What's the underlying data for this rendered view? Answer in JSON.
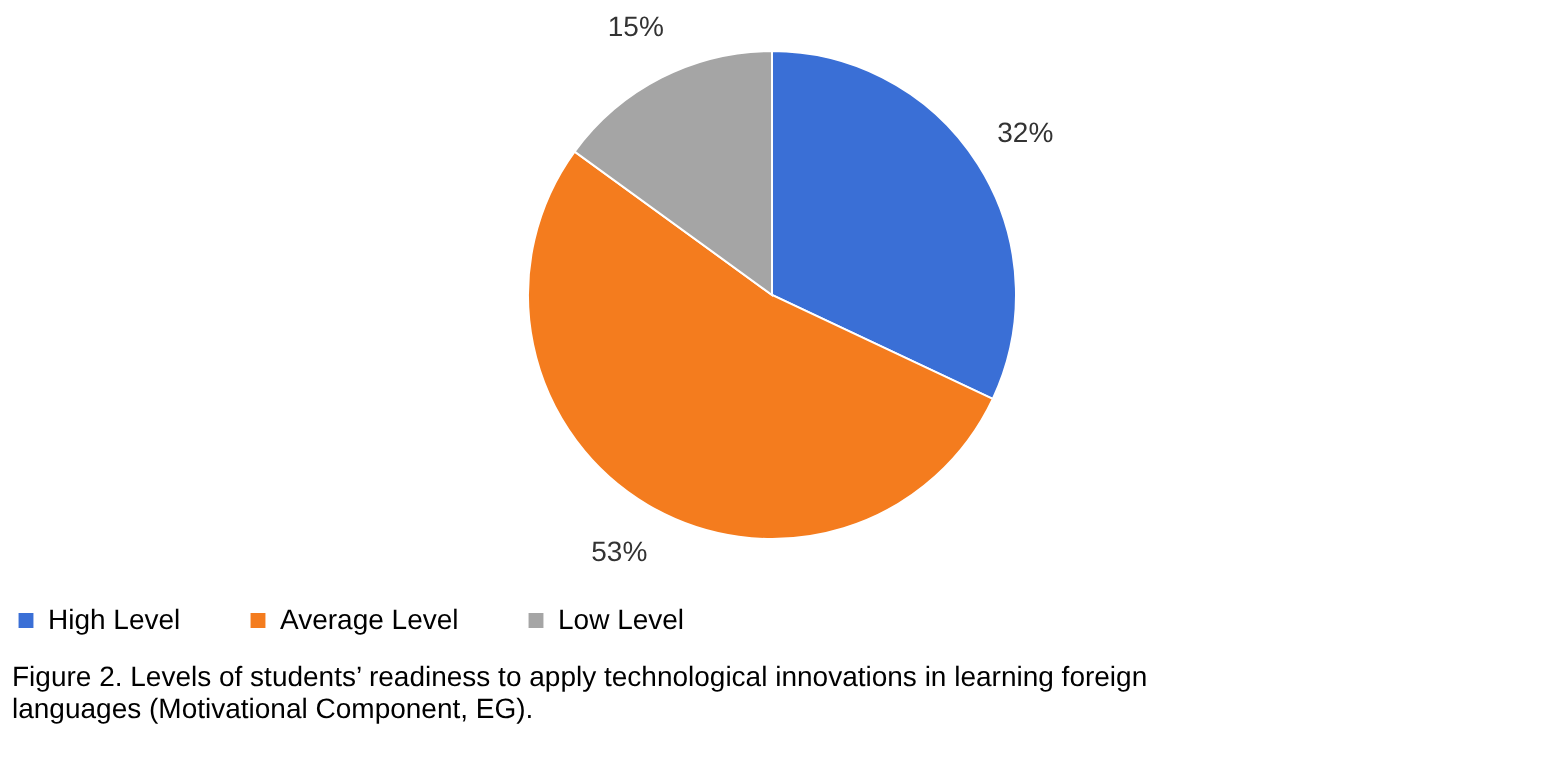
{
  "chart_data": {
    "type": "pie",
    "categories": [
      "High Level",
      "Average Level",
      "Low Level"
    ],
    "values": [
      32,
      53,
      15
    ],
    "value_labels": [
      "32%",
      "53%",
      "15%"
    ],
    "colors": [
      "#3a6fd6",
      "#f47c1e",
      "#a5a5a5"
    ],
    "legend": "bottom",
    "annotations": [
      "Figure 2. Levels of students’ readiness to apply technological innovations in learning foreign languages (Motivational Component, EG)."
    ]
  }
}
